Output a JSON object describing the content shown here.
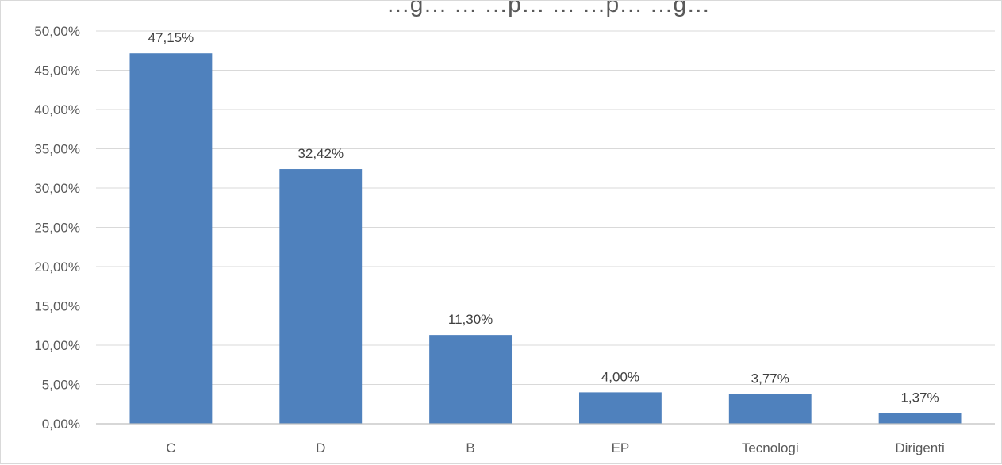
{
  "chart_data": {
    "type": "bar",
    "title": "…g… … …p… … …p… …g…",
    "categories": [
      "C",
      "D",
      "B",
      "EP",
      "Tecnologi",
      "Dirigenti"
    ],
    "values": [
      47.15,
      32.42,
      11.3,
      4.0,
      3.77,
      1.37
    ],
    "data_labels": [
      "47,15%",
      "32,42%",
      "11,30%",
      "4,00%",
      "3,77%",
      "1,37%"
    ],
    "y_ticks": [
      0,
      5,
      10,
      15,
      20,
      25,
      30,
      35,
      40,
      45,
      50
    ],
    "y_tick_labels": [
      "0,00%",
      "5,00%",
      "10,00%",
      "15,00%",
      "20,00%",
      "25,00%",
      "30,00%",
      "35,00%",
      "40,00%",
      "45,00%",
      "50,00%"
    ],
    "ylim": [
      0,
      50
    ],
    "xlabel": "",
    "ylabel": "",
    "grid": true,
    "bar_color": "#4f81bd"
  }
}
